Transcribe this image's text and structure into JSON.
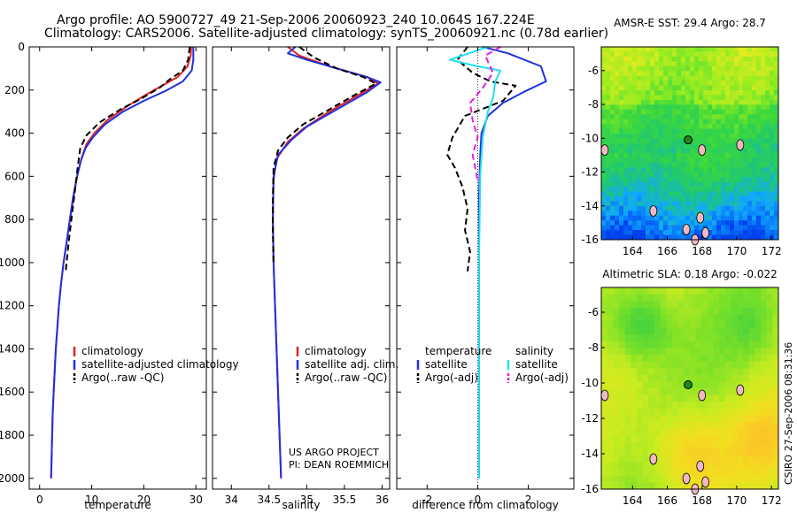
{
  "header": {
    "line1": "Argo profile: AO 5900727_49 21-Sep-2006 20060923_240 10.064S 167.224E",
    "line2": "Climatology: CARS2006. Satellite-adjusted climatology: synTS_20060921.nc (0.78d earlier)"
  },
  "side_label": "CSIRO 27-Sep-2006 08:31:36",
  "colors": {
    "climatology": "#e02020",
    "satellite": "#2030e0",
    "argo": "#000000",
    "sal_satellite": "#20e0f0",
    "sal_argo": "#e020e0",
    "float_marker": "#1a8a1a"
  },
  "footer_note": {
    "line1": "US ARGO PROJECT",
    "line2": "PI: DEAN ROEMMICH"
  },
  "chart_data": [
    {
      "id": "temp",
      "type": "line",
      "xlabel": "temperature",
      "xlim": [
        -2,
        32
      ],
      "ylim": [
        0,
        2050
      ],
      "y_inverted": true,
      "xticks": [
        0,
        10,
        20,
        30
      ],
      "yticks": [
        0,
        200,
        400,
        600,
        800,
        1000,
        1200,
        1400,
        1600,
        1800,
        2000
      ],
      "ytick_labels_shown": true,
      "legend": {
        "items": [
          {
            "label": "climatology",
            "series": "climatology"
          },
          {
            "label": "satellite-adjusted climatology",
            "series": "satellite"
          },
          {
            "label": "Argo(..raw -QC)",
            "series": "argo"
          }
        ]
      },
      "series": [
        {
          "name": "climatology",
          "color": "#e02020",
          "dash": "",
          "points": [
            [
              29.1,
              0
            ],
            [
              29.0,
              40
            ],
            [
              28.4,
              90
            ],
            [
              26.5,
              140
            ],
            [
              23.5,
              180
            ],
            [
              20.5,
              220
            ],
            [
              16.5,
              280
            ],
            [
              13,
              340
            ],
            [
              10.5,
              400
            ],
            [
              9,
              450
            ],
            [
              8,
              520
            ],
            [
              7.2,
              600
            ],
            [
              6.5,
              700
            ],
            [
              5.8,
              800
            ],
            [
              5.2,
              900
            ],
            [
              4.6,
              1000
            ],
            [
              4.1,
              1100
            ],
            [
              3.7,
              1200
            ],
            [
              3.4,
              1300
            ],
            [
              3.1,
              1400
            ],
            [
              2.9,
              1500
            ],
            [
              2.7,
              1600
            ],
            [
              2.5,
              1700
            ],
            [
              2.4,
              1800
            ],
            [
              2.3,
              1900
            ],
            [
              2.2,
              2000
            ]
          ]
        },
        {
          "name": "satellite",
          "color": "#2030e0",
          "dash": "",
          "points": [
            [
              29.5,
              0
            ],
            [
              29.5,
              60
            ],
            [
              29.2,
              110
            ],
            [
              27.5,
              160
            ],
            [
              24.5,
              200
            ],
            [
              20,
              250
            ],
            [
              16,
              300
            ],
            [
              12.5,
              360
            ],
            [
              10.2,
              420
            ],
            [
              8.8,
              470
            ],
            [
              7.9,
              530
            ],
            [
              7.1,
              610
            ],
            [
              6.4,
              700
            ],
            [
              5.8,
              800
            ],
            [
              5.2,
              900
            ],
            [
              4.6,
              1000
            ],
            [
              4.1,
              1100
            ],
            [
              3.7,
              1200
            ],
            [
              3.4,
              1300
            ],
            [
              3.1,
              1400
            ],
            [
              2.9,
              1500
            ],
            [
              2.7,
              1600
            ],
            [
              2.5,
              1700
            ],
            [
              2.4,
              1800
            ],
            [
              2.3,
              1900
            ],
            [
              2.2,
              2000
            ]
          ]
        },
        {
          "name": "argo",
          "color": "#000000",
          "dash": "7 4",
          "points": [
            [
              28.8,
              0
            ],
            [
              28.5,
              60
            ],
            [
              27.5,
              110
            ],
            [
              25,
              150
            ],
            [
              23,
              190
            ],
            [
              19.5,
              240
            ],
            [
              15.5,
              290
            ],
            [
              11.5,
              350
            ],
            [
              9,
              410
            ],
            [
              7.8,
              470
            ],
            [
              7.3,
              560
            ],
            [
              6.8,
              660
            ],
            [
              6.2,
              780
            ],
            [
              5.6,
              900
            ],
            [
              5.0,
              1040
            ]
          ]
        }
      ]
    },
    {
      "id": "sal",
      "type": "line",
      "xlabel": "salinity",
      "xlim": [
        33.75,
        36.1
      ],
      "ylim": [
        0,
        2050
      ],
      "y_inverted": true,
      "xticks": [
        34,
        34.5,
        35,
        35.5,
        36
      ],
      "yticks": [
        0,
        200,
        400,
        600,
        800,
        1000,
        1200,
        1400,
        1600,
        1800,
        2000
      ],
      "ytick_labels_shown": false,
      "legend": {
        "items": [
          {
            "label": "climatology",
            "series": "climatology"
          },
          {
            "label": "satellite adj. clim.",
            "series": "satellite"
          },
          {
            "label": "Argo(..raw -QC)",
            "series": "argo"
          }
        ]
      },
      "series": [
        {
          "name": "climatology",
          "color": "#e02020",
          "dash": "",
          "points": [
            [
              34.75,
              0
            ],
            [
              34.9,
              40
            ],
            [
              35.3,
              90
            ],
            [
              35.8,
              140
            ],
            [
              35.95,
              170
            ],
            [
              35.7,
              220
            ],
            [
              35.3,
              300
            ],
            [
              34.95,
              380
            ],
            [
              34.75,
              440
            ],
            [
              34.6,
              520
            ],
            [
              34.56,
              620
            ],
            [
              34.55,
              800
            ],
            [
              34.56,
              1000
            ],
            [
              34.58,
              1200
            ],
            [
              34.6,
              1400
            ],
            [
              34.62,
              1600
            ],
            [
              34.64,
              1800
            ],
            [
              34.66,
              2000
            ]
          ]
        },
        {
          "name": "satellite",
          "color": "#2030e0",
          "dash": "",
          "points": [
            [
              34.85,
              0
            ],
            [
              34.75,
              30
            ],
            [
              35.0,
              60
            ],
            [
              35.4,
              100
            ],
            [
              35.8,
              140
            ],
            [
              35.98,
              165
            ],
            [
              35.8,
              210
            ],
            [
              35.4,
              290
            ],
            [
              35.0,
              370
            ],
            [
              34.8,
              430
            ],
            [
              34.62,
              500
            ],
            [
              34.56,
              600
            ],
            [
              34.55,
              800
            ],
            [
              34.56,
              1000
            ],
            [
              34.58,
              1200
            ],
            [
              34.6,
              1400
            ],
            [
              34.62,
              1600
            ],
            [
              34.64,
              1800
            ],
            [
              34.66,
              2000
            ]
          ]
        },
        {
          "name": "argo",
          "color": "#000000",
          "dash": "7 4",
          "points": [
            [
              34.9,
              0
            ],
            [
              35.1,
              50
            ],
            [
              35.4,
              100
            ],
            [
              35.75,
              140
            ],
            [
              35.92,
              170
            ],
            [
              35.65,
              220
            ],
            [
              35.3,
              290
            ],
            [
              34.95,
              360
            ],
            [
              34.75,
              420
            ],
            [
              34.62,
              480
            ],
            [
              34.56,
              560
            ],
            [
              34.55,
              700
            ],
            [
              34.55,
              850
            ],
            [
              34.56,
              1000
            ]
          ]
        }
      ]
    },
    {
      "id": "diff",
      "type": "line",
      "xlabel": "difference from climatology",
      "xlim": [
        -3.2,
        3.8
      ],
      "ylim": [
        0,
        2050
      ],
      "y_inverted": true,
      "xticks": [
        -2,
        0,
        2
      ],
      "yticks": [
        0,
        200,
        400,
        600,
        800,
        1000,
        1200,
        1400,
        1600,
        1800,
        2000
      ],
      "ytick_labels_shown": false,
      "legend": {
        "headers": [
          "temperature",
          "salinity"
        ],
        "items": [
          {
            "label": "satellite",
            "series": "temp_satellite"
          },
          {
            "label": "Argo(-adj)",
            "series": "temp_argo"
          },
          {
            "label": "satellite",
            "series": "sal_satellite"
          },
          {
            "label": "Argo(-adj)",
            "series": "sal_argo"
          }
        ]
      },
      "series": [
        {
          "name": "temp_satellite",
          "color": "#2030e0",
          "dash": "",
          "points": [
            [
              0.2,
              0
            ],
            [
              1.2,
              30
            ],
            [
              2.5,
              90
            ],
            [
              2.7,
              160
            ],
            [
              1.8,
              210
            ],
            [
              1.0,
              260
            ],
            [
              0.4,
              320
            ],
            [
              0.15,
              400
            ],
            [
              0.1,
              500
            ],
            [
              0.05,
              700
            ],
            [
              0.05,
              1000
            ],
            [
              0.05,
              1500
            ],
            [
              0.05,
              2000
            ]
          ]
        },
        {
          "name": "temp_argo",
          "color": "#000000",
          "dash": "7 4",
          "points": [
            [
              -0.4,
              0
            ],
            [
              -0.8,
              60
            ],
            [
              -0.2,
              120
            ],
            [
              0.5,
              160
            ],
            [
              1.5,
              180
            ],
            [
              1.0,
              250
            ],
            [
              -0.5,
              320
            ],
            [
              -1.0,
              420
            ],
            [
              -1.2,
              500
            ],
            [
              -0.9,
              560
            ],
            [
              -0.6,
              650
            ],
            [
              -0.4,
              750
            ],
            [
              -0.5,
              850
            ],
            [
              -0.3,
              950
            ],
            [
              -0.4,
              1040
            ]
          ]
        },
        {
          "name": "sal_satellite",
          "color": "#20e0f0",
          "dash": "",
          "points": [
            [
              0.4,
              0
            ],
            [
              -1.1,
              60
            ],
            [
              0.0,
              90
            ],
            [
              0.9,
              110
            ],
            [
              0.7,
              160
            ],
            [
              0.6,
              240
            ],
            [
              0.4,
              300
            ],
            [
              0.2,
              420
            ],
            [
              0.1,
              600
            ],
            [
              0.05,
              1000
            ],
            [
              0.05,
              1500
            ],
            [
              0.05,
              2000
            ]
          ]
        },
        {
          "name": "sal_argo",
          "color": "#e020e0",
          "dash": "7 4",
          "points": [
            [
              0.9,
              0
            ],
            [
              0.3,
              40
            ],
            [
              0.6,
              120
            ],
            [
              0.2,
              190
            ],
            [
              -0.3,
              260
            ],
            [
              -0.2,
              340
            ],
            [
              0.0,
              420
            ],
            [
              -0.2,
              500
            ],
            [
              -0.1,
              560
            ],
            [
              0.0,
              620
            ]
          ]
        }
      ]
    },
    {
      "id": "sst_map",
      "type": "heatmap",
      "title": "AMSR-E SST: 29.4 Argo: 28.7",
      "xlim": [
        162.2,
        172.4
      ],
      "ylim": [
        -16,
        -4.6
      ],
      "xticks": [
        164,
        166,
        168,
        170,
        172
      ],
      "yticks": [
        -6,
        -8,
        -10,
        -12,
        -14,
        -16
      ],
      "float_position": [
        167.2,
        -10.1
      ],
      "field_description_colors": [
        "#0050ff",
        "#1cb4ff",
        "#28d26e",
        "#50dc32",
        "#aaf01e",
        "#ffe620"
      ]
    },
    {
      "id": "sla_map",
      "type": "heatmap",
      "title": "Altimetric SLA: 0.18 Argo: -0.022",
      "xlim": [
        162.2,
        172.4
      ],
      "ylim": [
        -16,
        -4.6
      ],
      "xticks": [
        164,
        166,
        168,
        170,
        172
      ],
      "yticks": [
        -6,
        -8,
        -10,
        -12,
        -14,
        -16
      ],
      "float_position": [
        167.2,
        -10.1
      ]
    }
  ]
}
